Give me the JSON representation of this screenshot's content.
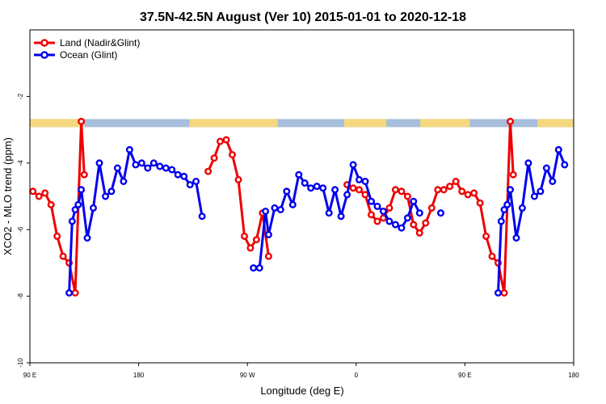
{
  "chart_data": {
    "type": "line",
    "title": "37.5N-42.5N August (Ver 10)   2015-01-01 to 2020-12-18",
    "xlabel": "Longitude (deg E)",
    "ylabel": "XCO2 - MLO trend (ppm)",
    "xlim": [
      90,
      540
    ],
    "ylim": [
      -10,
      0
    ],
    "x_ticks": [
      {
        "value": 90,
        "label": "90 E"
      },
      {
        "value": 180,
        "label": "180"
      },
      {
        "value": 270,
        "label": "90 W"
      },
      {
        "value": 360,
        "label": "0"
      },
      {
        "value": 450,
        "label": "90 E"
      },
      {
        "value": 540,
        "label": "180"
      }
    ],
    "y_ticks": [
      {
        "value": -2,
        "label": "-2"
      },
      {
        "value": -4,
        "label": "-4"
      },
      {
        "value": -6,
        "label": "-6"
      },
      {
        "value": -8,
        "label": "-8"
      },
      {
        "value": -10,
        "label": "-10"
      }
    ],
    "legend_position": "top-left",
    "land_ocean_strip": {
      "y_value": -2.8,
      "land_color": "#F5D77E",
      "ocean_color": "#A7BEDC"
    },
    "series": [
      {
        "name": "Land (Nadir&Glint)",
        "color": "#EE0000",
        "segments": [
          [
            [
              92.5,
              -4.85
            ],
            [
              97.5,
              -5.0
            ],
            [
              102.5,
              -4.9
            ],
            [
              107.5,
              -5.25
            ],
            [
              112.5,
              -6.2
            ],
            [
              117.5,
              -6.8
            ],
            [
              122.5,
              -7.0
            ],
            [
              127.5,
              -7.9
            ],
            [
              132.5,
              -2.75
            ],
            [
              135,
              -4.35
            ]
          ],
          [
            [
              237.5,
              -4.25
            ],
            [
              242.5,
              -3.85
            ],
            [
              247.5,
              -3.35
            ],
            [
              252.5,
              -3.3
            ],
            [
              257.5,
              -3.75
            ],
            [
              262.5,
              -4.5
            ],
            [
              267.5,
              -6.2
            ],
            [
              272.5,
              -6.55
            ],
            [
              277.5,
              -6.3
            ],
            [
              282.5,
              -5.5
            ],
            [
              287.5,
              -6.8
            ]
          ],
          [
            [
              352.5,
              -4.65
            ],
            [
              357.5,
              -4.75
            ],
            [
              362.5,
              -4.8
            ],
            [
              367.5,
              -4.95
            ],
            [
              372.5,
              -5.55
            ],
            [
              377.5,
              -5.75
            ],
            [
              382.5,
              -5.65
            ],
            [
              387.5,
              -5.35
            ],
            [
              392.5,
              -4.8
            ],
            [
              397.5,
              -4.85
            ],
            [
              402.5,
              -5.0
            ],
            [
              407.5,
              -5.85
            ],
            [
              412.5,
              -6.1
            ],
            [
              417.5,
              -5.8
            ],
            [
              422.5,
              -5.35
            ],
            [
              427.5,
              -4.8
            ],
            [
              432.5,
              -4.8
            ],
            [
              437.5,
              -4.7
            ],
            [
              442.5,
              -4.55
            ],
            [
              447.5,
              -4.85
            ],
            [
              452.5,
              -4.95
            ],
            [
              457.5,
              -4.9
            ],
            [
              462.5,
              -5.2
            ],
            [
              467.5,
              -6.2
            ],
            [
              472.5,
              -6.8
            ],
            [
              477.5,
              -7.0
            ],
            [
              482.5,
              -7.9
            ],
            [
              487.5,
              -2.75
            ],
            [
              490,
              -4.35
            ]
          ]
        ]
      },
      {
        "name": "Ocean (Glint)",
        "color": "#0000EE",
        "segments": [
          [
            [
              122.5,
              -7.9
            ],
            [
              125,
              -5.75
            ],
            [
              127.5,
              -5.4
            ],
            [
              130,
              -5.25
            ],
            [
              132.5,
              -4.8
            ],
            [
              137.5,
              -6.25
            ],
            [
              142.5,
              -5.35
            ],
            [
              147.5,
              -4.0
            ],
            [
              152.5,
              -5.0
            ],
            [
              157.5,
              -4.85
            ],
            [
              162.5,
              -4.15
            ],
            [
              167.5,
              -4.55
            ],
            [
              172.5,
              -3.6
            ],
            [
              177.5,
              -4.05
            ],
            [
              182.5,
              -4.0
            ],
            [
              187.5,
              -4.15
            ],
            [
              192.5,
              -4.0
            ],
            [
              197.5,
              -4.1
            ],
            [
              202.5,
              -4.15
            ],
            [
              207.5,
              -4.2
            ],
            [
              212.5,
              -4.35
            ],
            [
              217.5,
              -4.4
            ],
            [
              222.5,
              -4.65
            ],
            [
              227.5,
              -4.55
            ],
            [
              232.5,
              -5.6
            ]
          ],
          [
            [
              275,
              -7.15
            ],
            [
              280,
              -7.15
            ],
            [
              285,
              -5.45
            ],
            [
              287.5,
              -6.15
            ],
            [
              292.5,
              -5.35
            ],
            [
              297.5,
              -5.4
            ],
            [
              302.5,
              -4.85
            ],
            [
              307.5,
              -5.25
            ],
            [
              312.5,
              -4.35
            ],
            [
              317.5,
              -4.6
            ],
            [
              322.5,
              -4.75
            ],
            [
              327.5,
              -4.7
            ],
            [
              332.5,
              -4.75
            ],
            [
              337.5,
              -5.5
            ],
            [
              342.5,
              -4.8
            ],
            [
              347.5,
              -5.6
            ],
            [
              352.5,
              -4.95
            ],
            [
              357.5,
              -4.05
            ],
            [
              362.5,
              -4.5
            ],
            [
              367.5,
              -4.55
            ],
            [
              372.5,
              -5.15
            ],
            [
              377.5,
              -5.3
            ],
            [
              382.5,
              -5.45
            ],
            [
              387.5,
              -5.75
            ],
            [
              392.5,
              -5.85
            ],
            [
              397.5,
              -5.95
            ],
            [
              402.5,
              -5.65
            ],
            [
              407.5,
              -5.15
            ],
            [
              412.5,
              -5.5
            ]
          ],
          [
            [
              430,
              -5.5
            ]
          ],
          [
            [
              477.5,
              -7.9
            ],
            [
              480,
              -5.75
            ],
            [
              482.5,
              -5.4
            ],
            [
              485,
              -5.25
            ],
            [
              487.5,
              -4.8
            ],
            [
              492.5,
              -6.25
            ],
            [
              497.5,
              -5.35
            ],
            [
              502.5,
              -4.0
            ],
            [
              507.5,
              -5.0
            ],
            [
              512.5,
              -4.85
            ],
            [
              517.5,
              -4.15
            ],
            [
              522.5,
              -4.55
            ],
            [
              527.5,
              -3.6
            ],
            [
              532.5,
              -4.05
            ]
          ]
        ]
      }
    ]
  }
}
